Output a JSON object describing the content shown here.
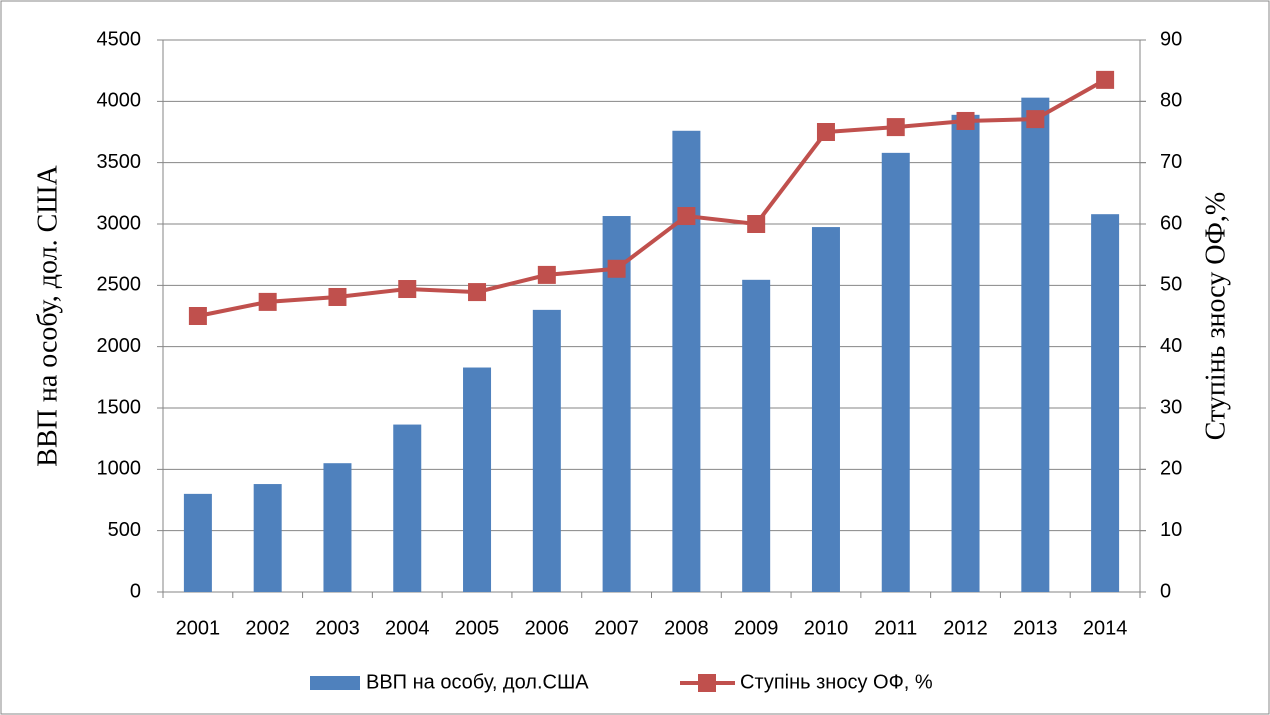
{
  "chart_data": {
    "type": "bar_line",
    "categories": [
      "2001",
      "2002",
      "2003",
      "2004",
      "2005",
      "2006",
      "2007",
      "2008",
      "2009",
      "2010",
      "2011",
      "2012",
      "2013",
      "2014"
    ],
    "series": [
      {
        "name": "ВВП на особу, дол.США",
        "type": "bar",
        "color": "#4f81bd",
        "values": [
          800,
          880,
          1050,
          1365,
          1830,
          2300,
          3065,
          3760,
          2545,
          2975,
          3580,
          3890,
          4030,
          3080
        ]
      },
      {
        "name": "Ступінь зносу ОФ, %",
        "type": "line",
        "axis": "y2",
        "color": "#c0504d",
        "values": [
          45,
          47.3,
          48.1,
          49.4,
          48.9,
          51.7,
          52.7,
          61.3,
          60,
          75,
          75.8,
          76.8,
          77.1,
          83.5
        ]
      }
    ],
    "ylabel": "ВВП на  особу, дол. США",
    "y2label": "Ступінь зносу ОФ,%",
    "ylim": [
      0,
      4500
    ],
    "yticks": [
      0,
      500,
      1000,
      1500,
      2000,
      2500,
      3000,
      3500,
      4000,
      4500
    ],
    "y2lim": [
      0,
      90
    ],
    "y2ticks": [
      0,
      10,
      20,
      30,
      40,
      50,
      60,
      70,
      80,
      90
    ],
    "grid": true,
    "legend": "bottom"
  }
}
